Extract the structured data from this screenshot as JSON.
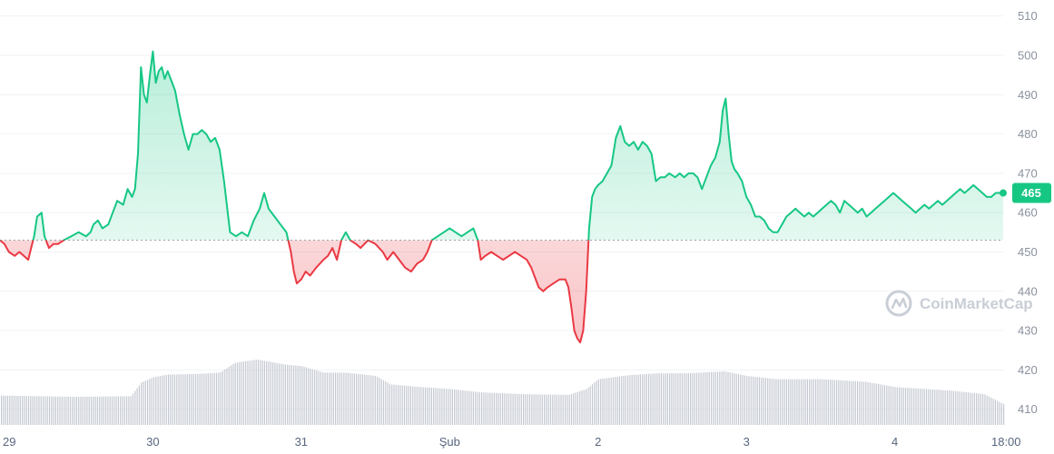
{
  "colors": {
    "up": "#16c784",
    "down": "#ea3943",
    "grid": "#eff2f5",
    "baseline": "#9aa0aa",
    "volume": "#c4c8d2"
  },
  "watermark": {
    "text": "CoinMarketCap",
    "icon": "coinmarketcap-logo-icon"
  },
  "current_price_label": "465",
  "chart_data": {
    "type": "line",
    "title": "",
    "xlabel": "",
    "ylabel": "",
    "ylim": [
      403,
      512
    ],
    "yticks": [
      410,
      420,
      430,
      440,
      450,
      460,
      470,
      480,
      490,
      500,
      510
    ],
    "baseline": 453,
    "x_unit": "days after 28 Jan 00:00",
    "xlim": [
      0.97,
      7.73
    ],
    "xticks": [
      {
        "x": 1,
        "label": "29"
      },
      {
        "x": 2,
        "label": "30"
      },
      {
        "x": 3,
        "label": "31"
      },
      {
        "x": 4,
        "label": "Şub"
      },
      {
        "x": 5,
        "label": "2"
      },
      {
        "x": 6,
        "label": "3"
      },
      {
        "x": 7,
        "label": "4"
      },
      {
        "x": 7.75,
        "label": "18:00"
      }
    ],
    "series": [
      {
        "points": [
          [
            0.97,
            453
          ],
          [
            1.0,
            452
          ],
          [
            1.03,
            450
          ],
          [
            1.07,
            449
          ],
          [
            1.1,
            450
          ],
          [
            1.13,
            449
          ],
          [
            1.16,
            448
          ],
          [
            1.18,
            451
          ],
          [
            1.2,
            454
          ],
          [
            1.22,
            459
          ],
          [
            1.25,
            460
          ],
          [
            1.27,
            454
          ],
          [
            1.3,
            451
          ],
          [
            1.33,
            452
          ],
          [
            1.36,
            452
          ],
          [
            1.4,
            453
          ],
          [
            1.45,
            454
          ],
          [
            1.5,
            455
          ],
          [
            1.55,
            454
          ],
          [
            1.58,
            455
          ],
          [
            1.6,
            457
          ],
          [
            1.63,
            458
          ],
          [
            1.66,
            456
          ],
          [
            1.7,
            457
          ],
          [
            1.73,
            460
          ],
          [
            1.76,
            463
          ],
          [
            1.8,
            462
          ],
          [
            1.83,
            466
          ],
          [
            1.86,
            464
          ],
          [
            1.88,
            466
          ],
          [
            1.9,
            475
          ],
          [
            1.92,
            497
          ],
          [
            1.94,
            490
          ],
          [
            1.96,
            488
          ],
          [
            1.98,
            495
          ],
          [
            2.0,
            501
          ],
          [
            2.02,
            493
          ],
          [
            2.04,
            496
          ],
          [
            2.06,
            497
          ],
          [
            2.08,
            494
          ],
          [
            2.1,
            496
          ],
          [
            2.12,
            494
          ],
          [
            2.15,
            491
          ],
          [
            2.18,
            485
          ],
          [
            2.21,
            480
          ],
          [
            2.24,
            476
          ],
          [
            2.27,
            480
          ],
          [
            2.3,
            480
          ],
          [
            2.33,
            481
          ],
          [
            2.36,
            480
          ],
          [
            2.39,
            478
          ],
          [
            2.42,
            479
          ],
          [
            2.45,
            476
          ],
          [
            2.48,
            468
          ],
          [
            2.52,
            455
          ],
          [
            2.56,
            454
          ],
          [
            2.6,
            455
          ],
          [
            2.64,
            454
          ],
          [
            2.68,
            458
          ],
          [
            2.72,
            461
          ],
          [
            2.75,
            465
          ],
          [
            2.78,
            461
          ],
          [
            2.82,
            459
          ],
          [
            2.86,
            457
          ],
          [
            2.9,
            455
          ],
          [
            2.93,
            450
          ],
          [
            2.95,
            445
          ],
          [
            2.97,
            442
          ],
          [
            3.0,
            443
          ],
          [
            3.03,
            445
          ],
          [
            3.06,
            444
          ],
          [
            3.1,
            446
          ],
          [
            3.15,
            448
          ],
          [
            3.18,
            449
          ],
          [
            3.21,
            451
          ],
          [
            3.24,
            448
          ],
          [
            3.27,
            453
          ],
          [
            3.3,
            455
          ],
          [
            3.33,
            453
          ],
          [
            3.37,
            452
          ],
          [
            3.4,
            451
          ],
          [
            3.45,
            453
          ],
          [
            3.5,
            452
          ],
          [
            3.55,
            450
          ],
          [
            3.58,
            448
          ],
          [
            3.62,
            450
          ],
          [
            3.66,
            448
          ],
          [
            3.7,
            446
          ],
          [
            3.74,
            445
          ],
          [
            3.78,
            447
          ],
          [
            3.82,
            448
          ],
          [
            3.85,
            450
          ],
          [
            3.88,
            453
          ],
          [
            3.92,
            454
          ],
          [
            3.96,
            455
          ],
          [
            4.0,
            456
          ],
          [
            4.04,
            455
          ],
          [
            4.08,
            454
          ],
          [
            4.12,
            455
          ],
          [
            4.16,
            456
          ],
          [
            4.19,
            453
          ],
          [
            4.21,
            448
          ],
          [
            4.24,
            449
          ],
          [
            4.28,
            450
          ],
          [
            4.32,
            449
          ],
          [
            4.36,
            448
          ],
          [
            4.4,
            449
          ],
          [
            4.44,
            450
          ],
          [
            4.48,
            449
          ],
          [
            4.52,
            448
          ],
          [
            4.55,
            446
          ],
          [
            4.57,
            444
          ],
          [
            4.6,
            441
          ],
          [
            4.63,
            440
          ],
          [
            4.66,
            441
          ],
          [
            4.7,
            442
          ],
          [
            4.74,
            443
          ],
          [
            4.78,
            443
          ],
          [
            4.8,
            441
          ],
          [
            4.82,
            436
          ],
          [
            4.84,
            430
          ],
          [
            4.86,
            428
          ],
          [
            4.88,
            427
          ],
          [
            4.9,
            430
          ],
          [
            4.92,
            440
          ],
          [
            4.94,
            456
          ],
          [
            4.96,
            464
          ],
          [
            4.98,
            466
          ],
          [
            5.0,
            467
          ],
          [
            5.03,
            468
          ],
          [
            5.06,
            470
          ],
          [
            5.09,
            472
          ],
          [
            5.12,
            479
          ],
          [
            5.15,
            482
          ],
          [
            5.18,
            478
          ],
          [
            5.21,
            477
          ],
          [
            5.24,
            478
          ],
          [
            5.27,
            476
          ],
          [
            5.3,
            478
          ],
          [
            5.33,
            477
          ],
          [
            5.36,
            475
          ],
          [
            5.39,
            468
          ],
          [
            5.42,
            469
          ],
          [
            5.45,
            469
          ],
          [
            5.48,
            470
          ],
          [
            5.52,
            469
          ],
          [
            5.55,
            470
          ],
          [
            5.58,
            469
          ],
          [
            5.61,
            470
          ],
          [
            5.64,
            470
          ],
          [
            5.67,
            469
          ],
          [
            5.7,
            466
          ],
          [
            5.73,
            469
          ],
          [
            5.76,
            472
          ],
          [
            5.79,
            474
          ],
          [
            5.82,
            478
          ],
          [
            5.84,
            486
          ],
          [
            5.86,
            489
          ],
          [
            5.88,
            480
          ],
          [
            5.9,
            473
          ],
          [
            5.92,
            471
          ],
          [
            5.94,
            470
          ],
          [
            5.97,
            468
          ],
          [
            6.0,
            464
          ],
          [
            6.03,
            462
          ],
          [
            6.06,
            459
          ],
          [
            6.09,
            459
          ],
          [
            6.12,
            458
          ],
          [
            6.15,
            456
          ],
          [
            6.18,
            455
          ],
          [
            6.21,
            455
          ],
          [
            6.24,
            457
          ],
          [
            6.27,
            459
          ],
          [
            6.3,
            460
          ],
          [
            6.33,
            461
          ],
          [
            6.36,
            460
          ],
          [
            6.39,
            459
          ],
          [
            6.42,
            460
          ],
          [
            6.45,
            459
          ],
          [
            6.48,
            460
          ],
          [
            6.51,
            461
          ],
          [
            6.54,
            462
          ],
          [
            6.57,
            463
          ],
          [
            6.6,
            462
          ],
          [
            6.63,
            460
          ],
          [
            6.66,
            463
          ],
          [
            6.69,
            462
          ],
          [
            6.72,
            461
          ],
          [
            6.75,
            460
          ],
          [
            6.78,
            461
          ],
          [
            6.81,
            459
          ],
          [
            6.84,
            460
          ],
          [
            6.87,
            461
          ],
          [
            6.9,
            462
          ],
          [
            6.93,
            463
          ],
          [
            6.96,
            464
          ],
          [
            6.99,
            465
          ],
          [
            7.02,
            464
          ],
          [
            7.05,
            463
          ],
          [
            7.08,
            462
          ],
          [
            7.11,
            461
          ],
          [
            7.14,
            460
          ],
          [
            7.17,
            461
          ],
          [
            7.2,
            462
          ],
          [
            7.23,
            461
          ],
          [
            7.26,
            462
          ],
          [
            7.29,
            463
          ],
          [
            7.32,
            462
          ],
          [
            7.35,
            463
          ],
          [
            7.38,
            464
          ],
          [
            7.41,
            465
          ],
          [
            7.44,
            466
          ],
          [
            7.47,
            465
          ],
          [
            7.5,
            466
          ],
          [
            7.53,
            467
          ],
          [
            7.56,
            466
          ],
          [
            7.59,
            465
          ],
          [
            7.62,
            464
          ],
          [
            7.65,
            464
          ],
          [
            7.68,
            465
          ],
          [
            7.71,
            465
          ],
          [
            7.73,
            465
          ]
        ]
      }
    ],
    "volume": {
      "ylim": [
        0,
        1
      ],
      "points": [
        [
          0.97,
          0.45
        ],
        [
          1.2,
          0.44
        ],
        [
          1.5,
          0.43
        ],
        [
          1.85,
          0.44
        ],
        [
          1.92,
          0.65
        ],
        [
          2.0,
          0.73
        ],
        [
          2.1,
          0.77
        ],
        [
          2.3,
          0.78
        ],
        [
          2.45,
          0.8
        ],
        [
          2.55,
          0.95
        ],
        [
          2.7,
          1.0
        ],
        [
          2.9,
          0.92
        ],
        [
          3.0,
          0.9
        ],
        [
          3.15,
          0.8
        ],
        [
          3.3,
          0.8
        ],
        [
          3.5,
          0.75
        ],
        [
          3.6,
          0.62
        ],
        [
          3.8,
          0.58
        ],
        [
          4.0,
          0.55
        ],
        [
          4.2,
          0.5
        ],
        [
          4.5,
          0.47
        ],
        [
          4.8,
          0.46
        ],
        [
          4.92,
          0.55
        ],
        [
          5.0,
          0.7
        ],
        [
          5.2,
          0.76
        ],
        [
          5.4,
          0.79
        ],
        [
          5.6,
          0.79
        ],
        [
          5.85,
          0.82
        ],
        [
          6.0,
          0.75
        ],
        [
          6.2,
          0.7
        ],
        [
          6.5,
          0.7
        ],
        [
          6.8,
          0.66
        ],
        [
          7.0,
          0.58
        ],
        [
          7.2,
          0.55
        ],
        [
          7.4,
          0.52
        ],
        [
          7.6,
          0.47
        ],
        [
          7.73,
          0.32
        ]
      ]
    }
  }
}
